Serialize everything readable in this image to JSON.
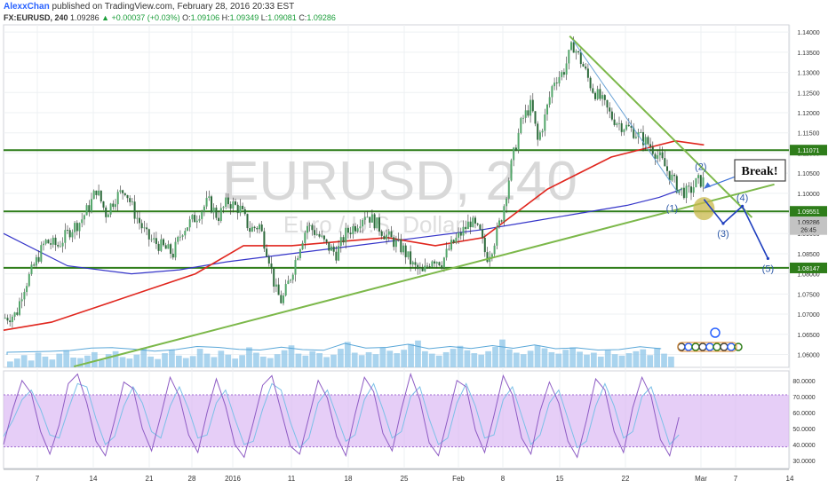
{
  "header": {
    "author": "AlexxChan",
    "published_text": "published on TradingView.com, February 28, 2016 20:33 EST",
    "symbol": "FX:EURUSD, 240",
    "last": "1.09286",
    "change": "▲ +0.00037 (+0.03%)",
    "open_label": "O:",
    "open": "1.09106",
    "high_label": "H:",
    "high": "1.09349",
    "low_label": "L:",
    "low": "1.09081",
    "close_label": "C:",
    "close": "1.09286"
  },
  "watermark": {
    "title": "EURUSD, 240",
    "subtitle": "Euro / U.S. Dollar"
  },
  "annotations": {
    "break_label": "Break!",
    "wave_labels": [
      "(1)",
      "(2)",
      "(3)",
      "(4)",
      "(5)"
    ]
  },
  "colors": {
    "grid": "#eef0f3",
    "candle_up": "#53a66a",
    "candle_down": "#2e6b3c",
    "ma_fast": "#e0261e",
    "ma_slow": "#3535c9",
    "level": "#2e7d1a",
    "trend": "#7cb84a",
    "volume": "#8ec5e8",
    "osc_band": "#d9b3f2",
    "osc_k": "#8e5cc4",
    "osc_d": "#7cc0e8",
    "projection": "#1f3fbf",
    "badge_green": "#2e7d1a",
    "badge_blue": "#2962ff",
    "badge_dark": "#444444"
  },
  "chart_data": [
    {
      "type": "candlestick",
      "title": "FX:EURUSD, 240",
      "x_ticks": [
        "7",
        "14",
        "21",
        "28",
        "2016",
        "11",
        "18",
        "25",
        "Feb",
        "8",
        "15",
        "22",
        "Mar",
        "7",
        "14"
      ],
      "y_ticks": [
        "1.14000",
        "1.13500",
        "1.13000",
        "1.12500",
        "1.12000",
        "1.11500",
        "1.11000",
        "1.10500",
        "1.10000",
        "1.09500",
        "1.09000",
        "1.08500",
        "1.08000",
        "1.07500",
        "1.07000",
        "1.06500",
        "1.06000"
      ],
      "ylim": [
        1.0568,
        1.1418
      ],
      "price_tags": [
        {
          "value": "1.11071",
          "price": 1.11071
        },
        {
          "value": "1.09551",
          "price": 1.09551
        },
        {
          "value": "1.09286",
          "price": 1.09286
        },
        {
          "value": "26:45",
          "price": 1.091
        },
        {
          "value": "1.08147",
          "price": 1.08147
        }
      ],
      "horizontal_levels": [
        1.1107,
        1.0955,
        1.0815
      ],
      "path": [
        [
          0,
          1.069
        ],
        [
          4,
          1.07
        ],
        [
          6,
          1.076
        ],
        [
          9,
          1.081
        ],
        [
          13,
          1.088
        ],
        [
          17,
          1.087
        ],
        [
          21,
          1.091
        ],
        [
          24,
          1.093
        ],
        [
          27,
          1.097
        ],
        [
          29,
          1.101
        ],
        [
          32,
          1.095
        ],
        [
          35,
          1.099
        ],
        [
          38,
          1.101
        ],
        [
          41,
          1.095
        ],
        [
          45,
          1.089
        ],
        [
          49,
          1.087
        ],
        [
          53,
          1.085
        ],
        [
          56,
          1.091
        ],
        [
          60,
          1.094
        ],
        [
          64,
          1.098
        ],
        [
          67,
          1.094
        ],
        [
          70,
          1.098
        ],
        [
          74,
          1.096
        ],
        [
          77,
          1.091
        ],
        [
          80,
          1.092
        ],
        [
          83,
          1.084
        ],
        [
          85,
          1.076
        ],
        [
          87,
          1.073
        ],
        [
          90,
          1.08
        ],
        [
          93,
          1.088
        ],
        [
          95,
          1.092
        ],
        [
          98,
          1.09
        ],
        [
          101,
          1.087
        ],
        [
          104,
          1.085
        ],
        [
          107,
          1.09
        ],
        [
          110,
          1.092
        ],
        [
          113,
          1.095
        ],
        [
          116,
          1.093
        ],
        [
          119,
          1.09
        ],
        [
          122,
          1.088
        ],
        [
          125,
          1.086
        ],
        [
          128,
          1.082
        ],
        [
          131,
          1.08
        ],
        [
          134,
          1.084
        ],
        [
          137,
          1.083
        ],
        [
          140,
          1.087
        ],
        [
          143,
          1.09
        ],
        [
          146,
          1.093
        ],
        [
          149,
          1.09
        ],
        [
          151,
          1.084
        ],
        [
          153,
          1.087
        ],
        [
          156,
          1.095
        ],
        [
          159,
          1.108
        ],
        [
          162,
          1.118
        ],
        [
          165,
          1.122
        ],
        [
          167,
          1.113
        ],
        [
          169,
          1.118
        ],
        [
          172,
          1.128
        ],
        [
          175,
          1.13
        ],
        [
          178,
          1.137
        ],
        [
          181,
          1.132
        ],
        [
          184,
          1.126
        ],
        [
          187,
          1.123
        ],
        [
          190,
          1.119
        ],
        [
          193,
          1.117
        ],
        [
          196,
          1.116
        ],
        [
          199,
          1.114
        ],
        [
          202,
          1.112
        ],
        [
          205,
          1.109
        ],
        [
          208,
          1.105
        ],
        [
          211,
          1.101
        ],
        [
          214,
          1.1
        ],
        [
          217,
          1.103
        ],
        [
          219,
          1.103
        ]
      ],
      "ma_fast": [
        [
          0,
          1.066
        ],
        [
          15,
          1.068
        ],
        [
          30,
          1.072
        ],
        [
          45,
          1.076
        ],
        [
          60,
          1.08
        ],
        [
          75,
          1.087
        ],
        [
          90,
          1.087
        ],
        [
          105,
          1.088
        ],
        [
          120,
          1.089
        ],
        [
          135,
          1.087
        ],
        [
          150,
          1.089
        ],
        [
          160,
          1.095
        ],
        [
          170,
          1.101
        ],
        [
          180,
          1.105
        ],
        [
          190,
          1.109
        ],
        [
          200,
          1.111
        ],
        [
          210,
          1.113
        ],
        [
          219,
          1.112
        ]
      ],
      "ma_slow": [
        [
          0,
          1.09
        ],
        [
          20,
          1.082
        ],
        [
          40,
          1.08
        ],
        [
          55,
          1.081
        ],
        [
          70,
          1.083
        ],
        [
          90,
          1.085
        ],
        [
          110,
          1.087
        ],
        [
          130,
          1.089
        ],
        [
          150,
          1.091
        ],
        [
          165,
          1.093
        ],
        [
          180,
          1.095
        ],
        [
          195,
          1.097
        ],
        [
          205,
          1.099
        ],
        [
          212,
          1.101
        ]
      ],
      "trendlines": [
        {
          "from": [
            22,
            1.057
          ],
          "to": [
            241,
            1.1022
          ]
        },
        {
          "from": [
            177,
            1.139
          ],
          "to": [
            234,
            1.094
          ]
        }
      ],
      "thin_line": {
        "from": [
          178,
          1.138
        ],
        "to": [
          211,
          1.1
        ]
      },
      "wave_points": [
        {
          "label": "(1)",
          "x": 209,
          "price": 1.0988,
          "drawn": false
        },
        {
          "label": "(2)",
          "x": 218,
          "price": 1.1045,
          "drawn": false
        },
        {
          "label": "(3)",
          "x": 225,
          "price": 1.0925,
          "drawn": true
        },
        {
          "label": "(4)",
          "x": 231,
          "price": 1.0968,
          "drawn": true
        },
        {
          "label": "(5)",
          "x": 239,
          "price": 1.0838,
          "drawn": true
        }
      ],
      "break_circle": {
        "x": 219,
        "price": 1.0962
      },
      "break_arrow": {
        "from": [
          231,
          1.1048
        ],
        "to": [
          219,
          1.1012
        ]
      }
    },
    {
      "type": "bar",
      "title": "Volume",
      "values": [
        12,
        18,
        25,
        14,
        30,
        22,
        16,
        28,
        35,
        20,
        19,
        24,
        31,
        15,
        27,
        33,
        21,
        18,
        26,
        40,
        22,
        17,
        29,
        36,
        24,
        19,
        23,
        38,
        28,
        21,
        34,
        26,
        18,
        25,
        41,
        30,
        22,
        19,
        27,
        35,
        45,
        28,
        24,
        33,
        29,
        21,
        26,
        38,
        52,
        30,
        25,
        31,
        27,
        40,
        34,
        29,
        36,
        48,
        55,
        33,
        28,
        24,
        31,
        38,
        44,
        35,
        29,
        26,
        33,
        42,
        57,
        37,
        30,
        27,
        34,
        45,
        39,
        31,
        28,
        36,
        41,
        32,
        26,
        30,
        22,
        35,
        27,
        24,
        29,
        33,
        37,
        25,
        40,
        28,
        22
      ]
    },
    {
      "type": "line",
      "title": "Stochastic",
      "y_ticks": [
        "80.0000",
        "70.0000",
        "60.0000",
        "50.0000",
        "40.0000",
        "30.0000"
      ],
      "ylim": [
        25,
        86
      ],
      "band": [
        38.5,
        71
      ],
      "k": [
        40,
        62,
        80,
        72,
        48,
        34,
        52,
        78,
        84,
        66,
        42,
        33,
        55,
        79,
        75,
        50,
        36,
        58,
        82,
        70,
        46,
        35,
        60,
        81,
        64,
        40,
        32,
        54,
        77,
        83,
        61,
        39,
        34,
        57,
        80,
        69,
        45,
        33,
        59,
        82,
        73,
        47,
        36,
        62,
        84,
        68,
        41,
        33,
        56,
        80,
        76,
        49,
        35,
        58,
        83,
        71,
        44,
        34,
        61,
        79,
        66,
        42,
        32,
        55,
        81,
        74,
        48,
        35,
        63,
        82,
        70,
        43,
        33,
        57
      ],
      "d": [
        45,
        55,
        68,
        74,
        62,
        46,
        44,
        62,
        78,
        76,
        56,
        40,
        45,
        64,
        76,
        66,
        48,
        44,
        64,
        76,
        62,
        44,
        46,
        66,
        74,
        56,
        40,
        42,
        62,
        78,
        74,
        54,
        38,
        44,
        66,
        74,
        58,
        42,
        46,
        68,
        78,
        62,
        44,
        48,
        70,
        76,
        56,
        40,
        44,
        66,
        78,
        64,
        44,
        46,
        68,
        76,
        58,
        40,
        46,
        66,
        74,
        56,
        38,
        42,
        64,
        78,
        64,
        44,
        48,
        70,
        76,
        58,
        40,
        46
      ]
    }
  ]
}
